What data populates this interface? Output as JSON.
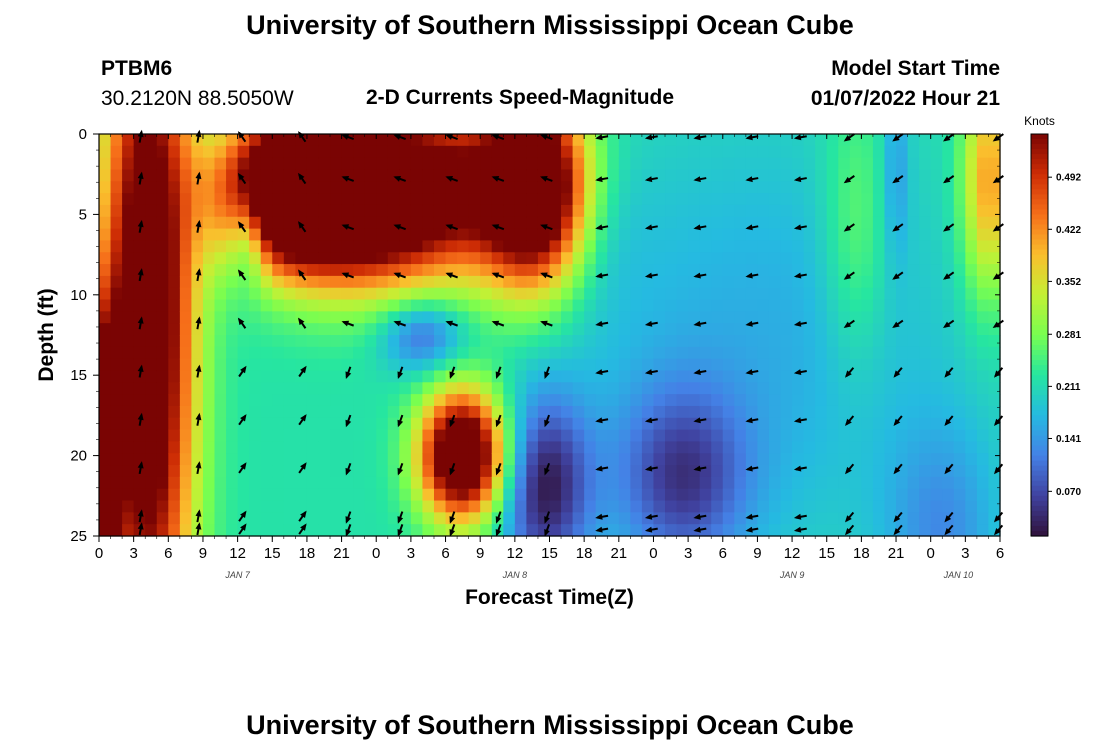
{
  "page": {
    "title_top": "University of Southern Mississippi Ocean Cube",
    "title_bottom": "University of Southern Mississippi Ocean Cube",
    "station": "PTBM6",
    "coords": "30.2120N  88.5050W",
    "plot_title": "2-D Currents Speed-Magnitude",
    "model_label": "Model Start Time",
    "model_time": "01/07/2022 Hour 21"
  },
  "chart_data": {
    "type": "heatmap",
    "title": "2-D Currents Speed-Magnitude",
    "xlabel": "Forecast Time(Z)",
    "ylabel": "Depth (ft)",
    "x_ticks": [
      "0",
      "3",
      "6",
      "9",
      "12",
      "15",
      "18",
      "21",
      "0",
      "3",
      "6",
      "9",
      "12",
      "15",
      "18",
      "21",
      "0",
      "3",
      "6",
      "9",
      "12",
      "15",
      "18",
      "21",
      "0",
      "3",
      "6"
    ],
    "date_labels": [
      {
        "label": "JAN 7",
        "tick_index": 4
      },
      {
        "label": "JAN 8",
        "tick_index": 12
      },
      {
        "label": "JAN 9",
        "tick_index": 20
      },
      {
        "label": "JAN 10",
        "tick_index": 24.8
      }
    ],
    "y_ticks": [
      0,
      5,
      10,
      15,
      20,
      25
    ],
    "ylim": [
      25,
      0
    ],
    "xlim_hours": [
      0,
      78
    ],
    "colorbar": {
      "unit": "Knots",
      "ticks": [
        "0.070",
        "0.141",
        "0.211",
        "0.281",
        "0.352",
        "0.422",
        "0.492"
      ],
      "range": [
        0.01,
        0.55
      ]
    },
    "arrow_rows_depth": [
      0.2,
      2.8,
      5.8,
      8.8,
      11.8,
      14.8,
      17.8,
      20.8,
      23.8,
      24.6
    ],
    "arrow_cols_hour": [
      3.6,
      8.6,
      12.4,
      17.6,
      21.6,
      26.1,
      30.6,
      34.6,
      38.8,
      43.6,
      47.9,
      52.1,
      56.6,
      60.8,
      65.0,
      69.2,
      73.6,
      77.9
    ],
    "speed_blobs": [
      {
        "t": 4.2,
        "d": 12,
        "st": 2.8,
        "sd": 16,
        "v": 0.44
      },
      {
        "t": 0.6,
        "d": 20,
        "st": 0.9,
        "sd": 6,
        "v": 0.35
      },
      {
        "t": 15.5,
        "d": 3.5,
        "st": 3.8,
        "sd": 3.2,
        "v": 0.4
      },
      {
        "t": 21.5,
        "d": 4.0,
        "st": 5.0,
        "sd": 3.6,
        "v": 0.42
      },
      {
        "t": 30.0,
        "d": 3.5,
        "st": 6.0,
        "sd": 4.0,
        "v": 0.3
      },
      {
        "t": 38.0,
        "d": 3.5,
        "st": 3.2,
        "sd": 4.2,
        "v": 0.44
      },
      {
        "t": 31.5,
        "d": 20.0,
        "st": 2.6,
        "sd": 2.8,
        "v": 0.48
      },
      {
        "t": 13.0,
        "d": 6.0,
        "st": 1.2,
        "sd": 2.2,
        "v": -0.14
      },
      {
        "t": 28.0,
        "d": 12.5,
        "st": 2.5,
        "sd": 1.6,
        "v": -0.13
      },
      {
        "t": 38.5,
        "d": 22.0,
        "st": 2.8,
        "sd": 4.0,
        "v": -0.19
      },
      {
        "t": 50.5,
        "d": 21.5,
        "st": 4.0,
        "sd": 4.0,
        "v": -0.14
      },
      {
        "t": 57.0,
        "d": 13.0,
        "st": 13.0,
        "sd": 10.0,
        "v": -0.06
      },
      {
        "t": 65.5,
        "d": 6.0,
        "st": 2.0,
        "sd": 6.0,
        "v": 0.07
      },
      {
        "t": 69.0,
        "d": 2.0,
        "st": 0.8,
        "sd": 4.0,
        "v": -0.06
      },
      {
        "t": 73.0,
        "d": 25.0,
        "st": 3.5,
        "sd": 5.0,
        "v": -0.08
      },
      {
        "t": 77.0,
        "d": 3.0,
        "st": 1.6,
        "sd": 5.0,
        "v": 0.2
      },
      {
        "t": 42.0,
        "d": 5.0,
        "st": 3.0,
        "sd": 4.0,
        "v": -0.06
      }
    ],
    "speed_base": 0.22,
    "arrow_direction_zones": [
      {
        "t0": 0,
        "t1": 10,
        "d0": 0,
        "d1": 25,
        "angle": 80
      },
      {
        "t0": 10,
        "t1": 20,
        "d0": 0,
        "d1": 12,
        "angle": 125
      },
      {
        "t0": 10,
        "t1": 20,
        "d0": 12,
        "d1": 25,
        "angle": 55
      },
      {
        "t0": 20,
        "t1": 43,
        "d0": 0,
        "d1": 12,
        "angle": 160
      },
      {
        "t0": 20,
        "t1": 43,
        "d0": 12,
        "d1": 25,
        "angle": 250
      },
      {
        "t0": 43,
        "t1": 64,
        "d0": 0,
        "d1": 25,
        "angle": 190
      },
      {
        "t0": 64,
        "t1": 78,
        "d0": 0,
        "d1": 12,
        "angle": 215
      },
      {
        "t0": 64,
        "t1": 78,
        "d0": 12,
        "d1": 25,
        "angle": 230
      }
    ]
  }
}
